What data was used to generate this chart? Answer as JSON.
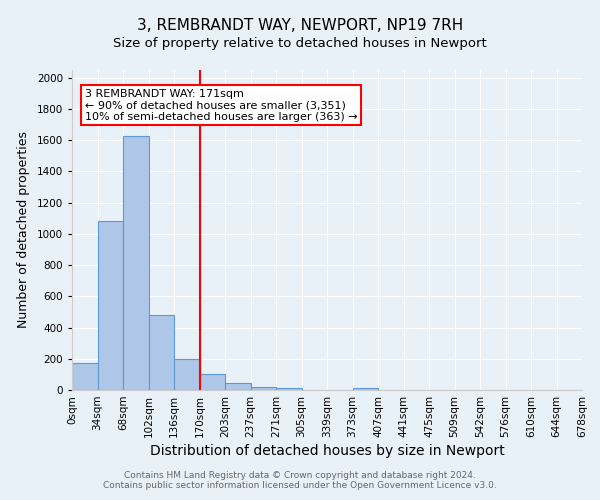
{
  "title": "3, REMBRANDT WAY, NEWPORT, NP19 7RH",
  "subtitle": "Size of property relative to detached houses in Newport",
  "xlabel": "Distribution of detached houses by size in Newport",
  "ylabel": "Number of detached properties",
  "bin_labels": [
    "0sqm",
    "34sqm",
    "68sqm",
    "102sqm",
    "136sqm",
    "170sqm",
    "203sqm",
    "237sqm",
    "271sqm",
    "305sqm",
    "339sqm",
    "373sqm",
    "407sqm",
    "441sqm",
    "475sqm",
    "509sqm",
    "542sqm",
    "576sqm",
    "610sqm",
    "644sqm",
    "678sqm"
  ],
  "bar_heights": [
    170,
    1080,
    1625,
    480,
    200,
    100,
    42,
    20,
    10,
    0,
    0,
    15,
    0,
    0,
    0,
    0,
    0,
    0,
    0,
    0
  ],
  "bar_color": "#aec6e8",
  "bar_edge_color": "#5b9bd5",
  "reference_line_x": 5,
  "annotation_text": "3 REMBRANDT WAY: 171sqm\n← 90% of detached houses are smaller (3,351)\n10% of semi-detached houses are larger (363) →",
  "annotation_box_color": "white",
  "annotation_box_edge_color": "red",
  "ylim": [
    0,
    2050
  ],
  "yticks": [
    0,
    200,
    400,
    600,
    800,
    1000,
    1200,
    1400,
    1600,
    1800,
    2000
  ],
  "bg_color": "#e8f0f8",
  "plot_bg_color": "#e8f0f8",
  "footer_line1": "Contains HM Land Registry data © Crown copyright and database right 2024.",
  "footer_line2": "Contains public sector information licensed under the Open Government Licence v3.0.",
  "title_fontsize": 11,
  "subtitle_fontsize": 9.5,
  "xlabel_fontsize": 10,
  "ylabel_fontsize": 9,
  "tick_fontsize": 7.5,
  "footer_fontsize": 6.5,
  "annotation_fontsize": 8
}
